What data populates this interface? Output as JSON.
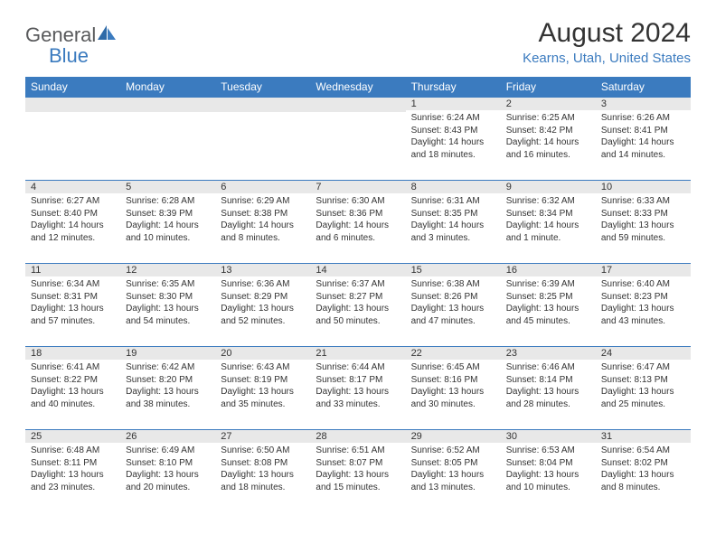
{
  "logo": {
    "text1": "General",
    "text2": "Blue"
  },
  "title": "August 2024",
  "location": "Kearns, Utah, United States",
  "colors": {
    "header_bg": "#3b7bbf",
    "header_text": "#ffffff",
    "daynum_bg": "#e8e8e8",
    "border": "#3b7bbf",
    "text": "#333333",
    "logo_gray": "#58595b",
    "logo_blue": "#3b7bbf"
  },
  "day_names": [
    "Sunday",
    "Monday",
    "Tuesday",
    "Wednesday",
    "Thursday",
    "Friday",
    "Saturday"
  ],
  "weeks": [
    [
      null,
      null,
      null,
      null,
      {
        "n": "1",
        "sr": "Sunrise: 6:24 AM",
        "ss": "Sunset: 8:43 PM",
        "dl": "Daylight: 14 hours and 18 minutes."
      },
      {
        "n": "2",
        "sr": "Sunrise: 6:25 AM",
        "ss": "Sunset: 8:42 PM",
        "dl": "Daylight: 14 hours and 16 minutes."
      },
      {
        "n": "3",
        "sr": "Sunrise: 6:26 AM",
        "ss": "Sunset: 8:41 PM",
        "dl": "Daylight: 14 hours and 14 minutes."
      }
    ],
    [
      {
        "n": "4",
        "sr": "Sunrise: 6:27 AM",
        "ss": "Sunset: 8:40 PM",
        "dl": "Daylight: 14 hours and 12 minutes."
      },
      {
        "n": "5",
        "sr": "Sunrise: 6:28 AM",
        "ss": "Sunset: 8:39 PM",
        "dl": "Daylight: 14 hours and 10 minutes."
      },
      {
        "n": "6",
        "sr": "Sunrise: 6:29 AM",
        "ss": "Sunset: 8:38 PM",
        "dl": "Daylight: 14 hours and 8 minutes."
      },
      {
        "n": "7",
        "sr": "Sunrise: 6:30 AM",
        "ss": "Sunset: 8:36 PM",
        "dl": "Daylight: 14 hours and 6 minutes."
      },
      {
        "n": "8",
        "sr": "Sunrise: 6:31 AM",
        "ss": "Sunset: 8:35 PM",
        "dl": "Daylight: 14 hours and 3 minutes."
      },
      {
        "n": "9",
        "sr": "Sunrise: 6:32 AM",
        "ss": "Sunset: 8:34 PM",
        "dl": "Daylight: 14 hours and 1 minute."
      },
      {
        "n": "10",
        "sr": "Sunrise: 6:33 AM",
        "ss": "Sunset: 8:33 PM",
        "dl": "Daylight: 13 hours and 59 minutes."
      }
    ],
    [
      {
        "n": "11",
        "sr": "Sunrise: 6:34 AM",
        "ss": "Sunset: 8:31 PM",
        "dl": "Daylight: 13 hours and 57 minutes."
      },
      {
        "n": "12",
        "sr": "Sunrise: 6:35 AM",
        "ss": "Sunset: 8:30 PM",
        "dl": "Daylight: 13 hours and 54 minutes."
      },
      {
        "n": "13",
        "sr": "Sunrise: 6:36 AM",
        "ss": "Sunset: 8:29 PM",
        "dl": "Daylight: 13 hours and 52 minutes."
      },
      {
        "n": "14",
        "sr": "Sunrise: 6:37 AM",
        "ss": "Sunset: 8:27 PM",
        "dl": "Daylight: 13 hours and 50 minutes."
      },
      {
        "n": "15",
        "sr": "Sunrise: 6:38 AM",
        "ss": "Sunset: 8:26 PM",
        "dl": "Daylight: 13 hours and 47 minutes."
      },
      {
        "n": "16",
        "sr": "Sunrise: 6:39 AM",
        "ss": "Sunset: 8:25 PM",
        "dl": "Daylight: 13 hours and 45 minutes."
      },
      {
        "n": "17",
        "sr": "Sunrise: 6:40 AM",
        "ss": "Sunset: 8:23 PM",
        "dl": "Daylight: 13 hours and 43 minutes."
      }
    ],
    [
      {
        "n": "18",
        "sr": "Sunrise: 6:41 AM",
        "ss": "Sunset: 8:22 PM",
        "dl": "Daylight: 13 hours and 40 minutes."
      },
      {
        "n": "19",
        "sr": "Sunrise: 6:42 AM",
        "ss": "Sunset: 8:20 PM",
        "dl": "Daylight: 13 hours and 38 minutes."
      },
      {
        "n": "20",
        "sr": "Sunrise: 6:43 AM",
        "ss": "Sunset: 8:19 PM",
        "dl": "Daylight: 13 hours and 35 minutes."
      },
      {
        "n": "21",
        "sr": "Sunrise: 6:44 AM",
        "ss": "Sunset: 8:17 PM",
        "dl": "Daylight: 13 hours and 33 minutes."
      },
      {
        "n": "22",
        "sr": "Sunrise: 6:45 AM",
        "ss": "Sunset: 8:16 PM",
        "dl": "Daylight: 13 hours and 30 minutes."
      },
      {
        "n": "23",
        "sr": "Sunrise: 6:46 AM",
        "ss": "Sunset: 8:14 PM",
        "dl": "Daylight: 13 hours and 28 minutes."
      },
      {
        "n": "24",
        "sr": "Sunrise: 6:47 AM",
        "ss": "Sunset: 8:13 PM",
        "dl": "Daylight: 13 hours and 25 minutes."
      }
    ],
    [
      {
        "n": "25",
        "sr": "Sunrise: 6:48 AM",
        "ss": "Sunset: 8:11 PM",
        "dl": "Daylight: 13 hours and 23 minutes."
      },
      {
        "n": "26",
        "sr": "Sunrise: 6:49 AM",
        "ss": "Sunset: 8:10 PM",
        "dl": "Daylight: 13 hours and 20 minutes."
      },
      {
        "n": "27",
        "sr": "Sunrise: 6:50 AM",
        "ss": "Sunset: 8:08 PM",
        "dl": "Daylight: 13 hours and 18 minutes."
      },
      {
        "n": "28",
        "sr": "Sunrise: 6:51 AM",
        "ss": "Sunset: 8:07 PM",
        "dl": "Daylight: 13 hours and 15 minutes."
      },
      {
        "n": "29",
        "sr": "Sunrise: 6:52 AM",
        "ss": "Sunset: 8:05 PM",
        "dl": "Daylight: 13 hours and 13 minutes."
      },
      {
        "n": "30",
        "sr": "Sunrise: 6:53 AM",
        "ss": "Sunset: 8:04 PM",
        "dl": "Daylight: 13 hours and 10 minutes."
      },
      {
        "n": "31",
        "sr": "Sunrise: 6:54 AM",
        "ss": "Sunset: 8:02 PM",
        "dl": "Daylight: 13 hours and 8 minutes."
      }
    ]
  ]
}
